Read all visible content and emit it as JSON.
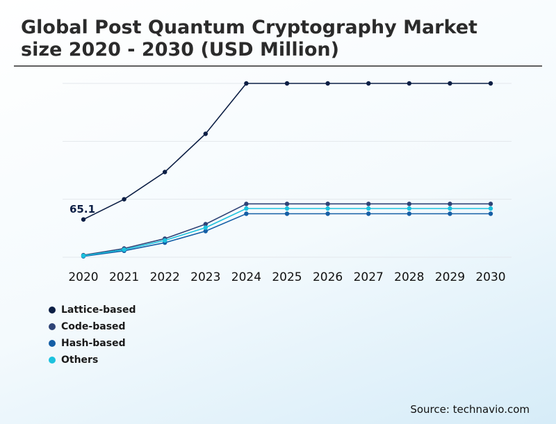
{
  "header": {
    "title_line1": "Global Post Quantum Cryptography Market",
    "title_line2": "size 2020 - 2030 (USD Million)"
  },
  "chart_data": {
    "type": "line",
    "title": "Global Post Quantum Cryptography Market size 2020 - 2030 (USD Million)",
    "xlabel": "",
    "ylabel": "",
    "ylim": [
      0,
      300
    ],
    "grid": true,
    "categories": [
      "2020",
      "2021",
      "2022",
      "2023",
      "2024",
      "2025",
      "2026",
      "2027",
      "2028",
      "2029",
      "2030"
    ],
    "series": [
      {
        "name": "Lattice-based",
        "color": "#0c1f45",
        "values": [
          65.1,
          100,
          147,
          213,
          300,
          300,
          300,
          300,
          300,
          300,
          300
        ]
      },
      {
        "name": "Code-based",
        "color": "#2f4477",
        "values": [
          3.5,
          15,
          32,
          57,
          92,
          92,
          92,
          92,
          92,
          92,
          92
        ]
      },
      {
        "name": "Hash-based",
        "color": "#155fa6",
        "values": [
          1.5,
          11,
          25,
          45,
          75,
          75,
          75,
          75,
          75,
          75,
          75
        ]
      },
      {
        "name": "Others",
        "color": "#1cc2de",
        "values": [
          2.5,
          13,
          29,
          51,
          84,
          84,
          84,
          84,
          84,
          84,
          84
        ]
      }
    ],
    "annotations": [
      {
        "series": "Lattice-based",
        "category": "2020",
        "text": "65.1"
      }
    ],
    "legend_position": "bottom-left"
  },
  "footer": {
    "source": "Source: technavio.com"
  }
}
